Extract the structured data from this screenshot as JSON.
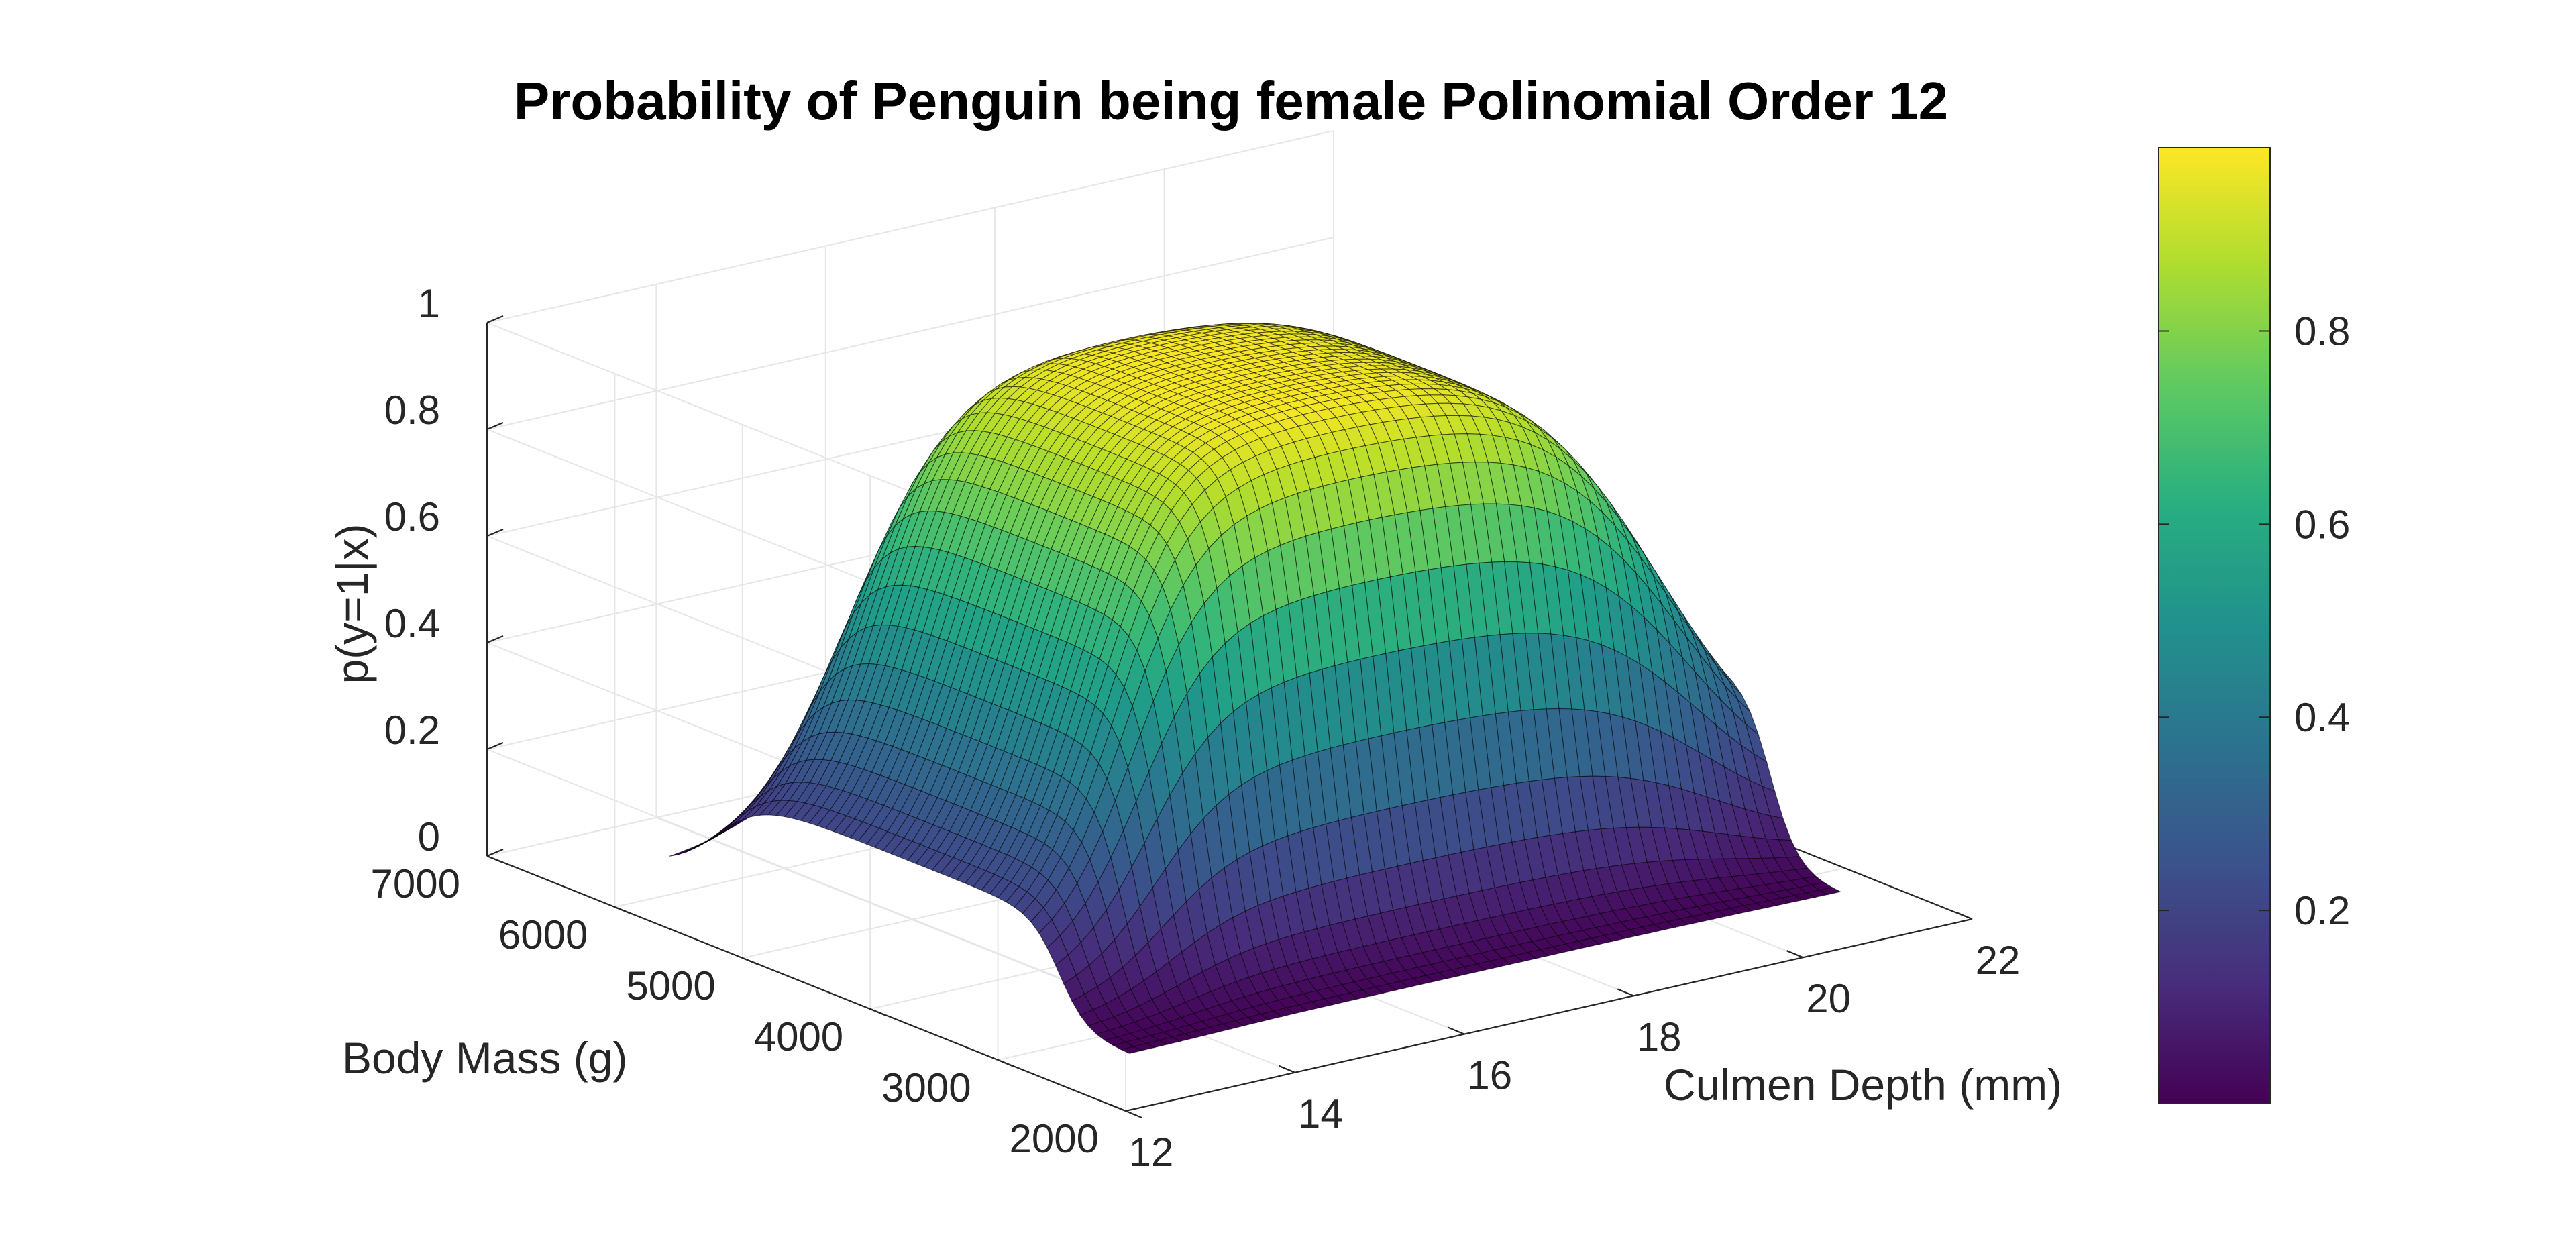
{
  "chart_data": {
    "type": "surface",
    "title": "Probability of Penguin being female Polinomial Order 12",
    "xlabel": "Culmen Depth (mm)",
    "ylabel": "Body Mass (g)",
    "zlabel": "p(y=1|x)",
    "xlim": [
      12,
      22
    ],
    "ylim": [
      2000,
      7000
    ],
    "zlim": [
      0,
      1
    ],
    "x_ticks": [
      "12",
      "14",
      "16",
      "18",
      "20",
      "22"
    ],
    "y_ticks": [
      "2000",
      "3000",
      "4000",
      "5000",
      "6000",
      "7000"
    ],
    "z_ticks": [
      "0",
      "0.2",
      "0.4",
      "0.6",
      "0.8",
      "1"
    ],
    "surface_x_range": [
      13.1,
      21.5
    ],
    "surface_y_range": [
      2700,
      6300
    ],
    "z_min": 0.0,
    "z_max": 0.99,
    "colormap": "viridis",
    "colorbar": {
      "ticks": [
        "0.2",
        "0.4",
        "0.6",
        "0.8"
      ],
      "tick_values": [
        0.2,
        0.4,
        0.6,
        0.8
      ],
      "range": [
        0.0,
        0.99
      ]
    },
    "grid": true
  }
}
